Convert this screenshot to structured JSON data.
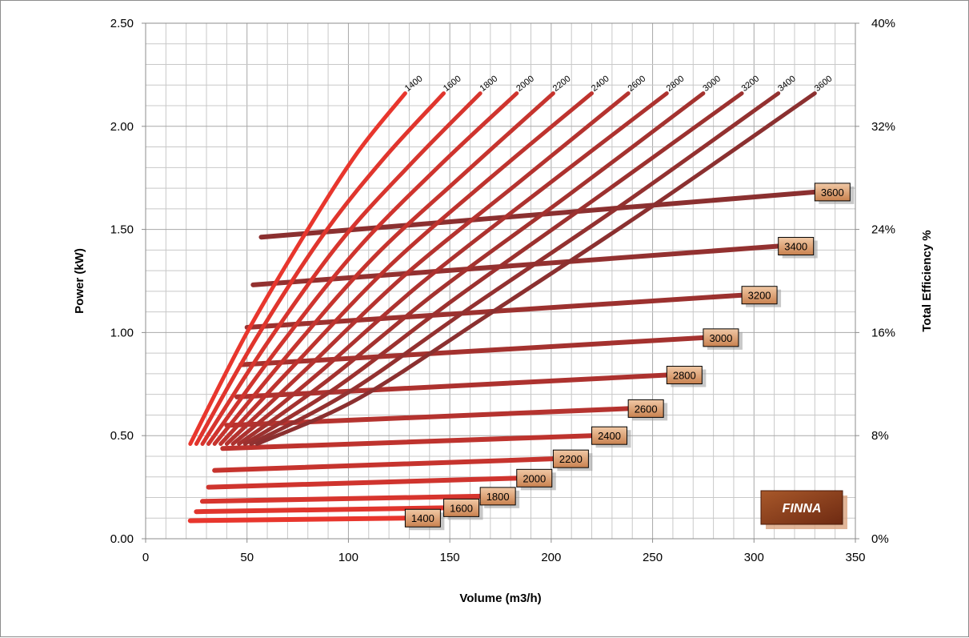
{
  "chart_data": {
    "type": "line",
    "xlabel": "Volume (m3/h)",
    "ylabel": "Power (kW)",
    "y2label": "Total Efficiency %",
    "xlim": [
      0,
      350
    ],
    "ylim": [
      0,
      2.5
    ],
    "y2lim": [
      0,
      40
    ],
    "xticks": [
      "0",
      "50",
      "100",
      "150",
      "200",
      "250",
      "300",
      "350"
    ],
    "yticks": [
      "0.00",
      "0.50",
      "1.00",
      "1.50",
      "2.00",
      "2.50"
    ],
    "y2ticks": [
      "0%",
      "8%",
      "16%",
      "24%",
      "32%",
      "40%"
    ],
    "grid": true,
    "brand": "FINNA",
    "colors": {
      "low": "#e8362d",
      "high": "#8b3030",
      "box_top": "#f1c9a6",
      "box_bottom": "#c9814f",
      "brand_top": "#a8582a",
      "brand_bottom": "#6e2a12",
      "grid": "#c8c8c8"
    },
    "power_series": [
      {
        "name": "1400",
        "x": [
          22,
          50,
          80,
          105,
          128
        ],
        "y": [
          0.46,
          1.0,
          1.5,
          1.88,
          2.16
        ]
      },
      {
        "name": "1600",
        "x": [
          25,
          55,
          88,
          118,
          147
        ],
        "y": [
          0.46,
          0.98,
          1.48,
          1.85,
          2.16
        ]
      },
      {
        "name": "1800",
        "x": [
          28,
          60,
          96,
          131,
          165
        ],
        "y": [
          0.46,
          0.95,
          1.44,
          1.82,
          2.16
        ]
      },
      {
        "name": "2000",
        "x": [
          31,
          65,
          104,
          144,
          183
        ],
        "y": [
          0.46,
          0.92,
          1.4,
          1.8,
          2.16
        ]
      },
      {
        "name": "2200",
        "x": [
          34,
          70,
          112,
          157,
          201
        ],
        "y": [
          0.46,
          0.89,
          1.36,
          1.77,
          2.16
        ]
      },
      {
        "name": "2400",
        "x": [
          37,
          75,
          120,
          170,
          220
        ],
        "y": [
          0.46,
          0.86,
          1.32,
          1.75,
          2.16
        ]
      },
      {
        "name": "2600",
        "x": [
          40,
          80,
          128,
          183,
          238
        ],
        "y": [
          0.46,
          0.83,
          1.28,
          1.72,
          2.16
        ]
      },
      {
        "name": "2800",
        "x": [
          43,
          85,
          136,
          196,
          257
        ],
        "y": [
          0.46,
          0.8,
          1.24,
          1.7,
          2.16
        ]
      },
      {
        "name": "3000",
        "x": [
          46,
          90,
          144,
          209,
          275
        ],
        "y": [
          0.46,
          0.77,
          1.2,
          1.67,
          2.16
        ]
      },
      {
        "name": "3200",
        "x": [
          49,
          95,
          152,
          222,
          294
        ],
        "y": [
          0.46,
          0.74,
          1.16,
          1.65,
          2.16
        ]
      },
      {
        "name": "3400",
        "x": [
          52,
          100,
          160,
          235,
          312
        ],
        "y": [
          0.46,
          0.71,
          1.12,
          1.62,
          2.16
        ]
      },
      {
        "name": "3600",
        "x": [
          55,
          105,
          168,
          248,
          330
        ],
        "y": [
          0.46,
          0.68,
          1.08,
          1.6,
          2.16
        ]
      }
    ],
    "efficiency_series": [
      {
        "name": "1400",
        "x": [
          22,
          128
        ],
        "y": [
          1.4,
          1.6
        ]
      },
      {
        "name": "1600",
        "x": [
          25,
          147
        ],
        "y": [
          2.1,
          2.4
        ]
      },
      {
        "name": "1800",
        "x": [
          28,
          165
        ],
        "y": [
          2.9,
          3.3
        ]
      },
      {
        "name": "2000",
        "x": [
          31,
          183
        ],
        "y": [
          4.0,
          4.7
        ]
      },
      {
        "name": "2200",
        "x": [
          34,
          201
        ],
        "y": [
          5.3,
          6.2
        ]
      },
      {
        "name": "2400",
        "x": [
          38,
          220
        ],
        "y": [
          7.0,
          8.0
        ]
      },
      {
        "name": "2600",
        "x": [
          40,
          238
        ],
        "y": [
          8.8,
          10.1
        ]
      },
      {
        "name": "2800",
        "x": [
          45,
          257
        ],
        "y": [
          11.0,
          12.7
        ]
      },
      {
        "name": "3000",
        "x": [
          47,
          275
        ],
        "y": [
          13.5,
          15.6
        ]
      },
      {
        "name": "3200",
        "x": [
          50,
          294
        ],
        "y": [
          16.4,
          18.9
        ]
      },
      {
        "name": "3400",
        "x": [
          53,
          312
        ],
        "y": [
          19.7,
          22.7
        ]
      },
      {
        "name": "3600",
        "x": [
          57,
          330
        ],
        "y": [
          23.4,
          26.9
        ]
      }
    ]
  }
}
